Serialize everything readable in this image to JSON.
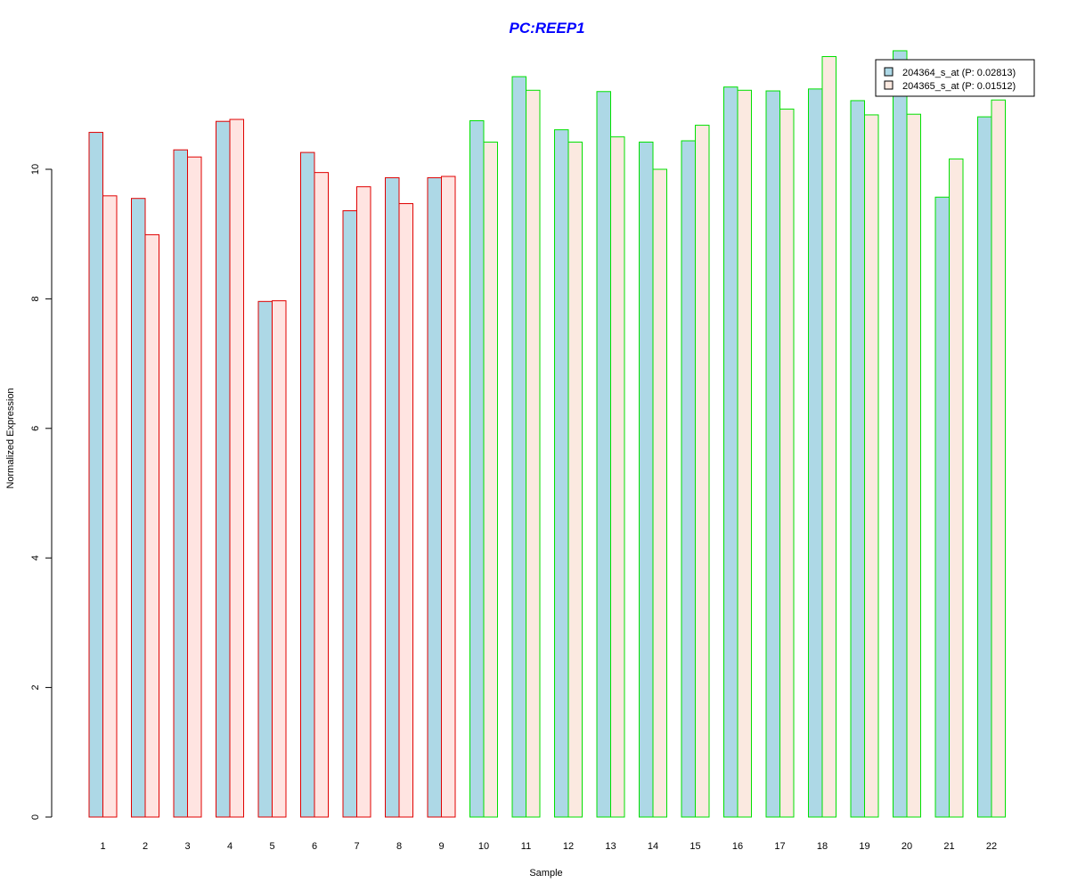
{
  "colors": {
    "title": "#0000ff",
    "series1_fill": "#add8e6",
    "series2_fill_group1": "#ffe4e1",
    "series2_fill_group2": "#fbe9e0",
    "border_group1": "#e00000",
    "border_group2": "#00e000",
    "axis": "#000000"
  },
  "chart_data": {
    "type": "bar",
    "title": "PC:REEP1",
    "xlabel": "Sample",
    "ylabel": "Normalized Expression",
    "ylim": [
      0,
      12
    ],
    "yticks": [
      0,
      2,
      4,
      6,
      8,
      10
    ],
    "categories": [
      "1",
      "2",
      "3",
      "4",
      "5",
      "6",
      "7",
      "8",
      "9",
      "10",
      "11",
      "12",
      "13",
      "14",
      "15",
      "16",
      "17",
      "18",
      "19",
      "20",
      "21",
      "22"
    ],
    "group": [
      1,
      1,
      1,
      1,
      1,
      1,
      1,
      1,
      1,
      2,
      2,
      2,
      2,
      2,
      2,
      2,
      2,
      2,
      2,
      2,
      2,
      2
    ],
    "legend_position": "top-right",
    "series": [
      {
        "name": "204364_s_at (P: 0.02813)",
        "values": [
          10.57,
          9.55,
          10.3,
          10.74,
          7.96,
          10.26,
          9.36,
          9.87,
          9.87,
          10.75,
          11.43,
          10.61,
          11.2,
          10.42,
          10.44,
          11.27,
          11.21,
          11.24,
          11.06,
          11.83,
          9.57,
          10.81
        ]
      },
      {
        "name": "204365_s_at (P: 0.01512)",
        "values": [
          9.59,
          8.99,
          10.19,
          10.77,
          7.97,
          9.95,
          9.73,
          9.47,
          9.89,
          10.42,
          11.22,
          10.42,
          10.5,
          10.0,
          10.68,
          11.22,
          10.93,
          11.74,
          10.84,
          10.85,
          10.16,
          11.07
        ]
      }
    ]
  }
}
